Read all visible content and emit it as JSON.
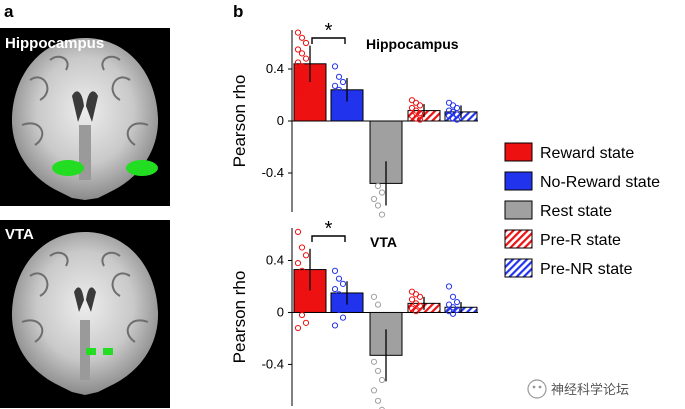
{
  "panels": {
    "a": "a",
    "b": "b"
  },
  "brain_images": [
    {
      "label": "Hippocampus"
    },
    {
      "label": "VTA"
    }
  ],
  "colors": {
    "reward": "#ee1111",
    "noreward": "#2233ee",
    "rest": "#a0a0a0",
    "roi": "#22dd22"
  },
  "legend": [
    {
      "label": "Reward state",
      "style": "solid",
      "color": "#ee1111"
    },
    {
      "label": "No-Reward state",
      "style": "solid",
      "color": "#2233ee"
    },
    {
      "label": "Rest state",
      "style": "solid",
      "color": "#a0a0a0"
    },
    {
      "label": "Pre-R state",
      "style": "hatch",
      "color": "#ee1111"
    },
    {
      "label": "Pre-NR state",
      "style": "hatch",
      "color": "#2233ee"
    }
  ],
  "chart_data": [
    {
      "type": "bar",
      "title": "Hippocampus",
      "ylabel": "Pearson rho",
      "xlabel": "",
      "ylim": [
        -0.7,
        0.7
      ],
      "yticks": [
        0.4,
        0,
        -0.4
      ],
      "ytick_labels": [
        "0.4",
        "0",
        "-0.4"
      ],
      "categories": [
        "Reward state",
        "No-Reward state",
        "Rest state",
        "Pre-R state",
        "Pre-NR state"
      ],
      "values": [
        0.44,
        0.24,
        -0.48,
        0.08,
        0.07
      ],
      "errors": [
        0.14,
        0.09,
        0.17,
        0.05,
        0.05
      ],
      "significance": {
        "between": [
          0,
          1
        ],
        "label": "*"
      },
      "points": [
        [
          0.68,
          0.64,
          0.6,
          0.55,
          0.52,
          0.48,
          0.45,
          0.42,
          0.38,
          0.35,
          0.32,
          0.28,
          0.25,
          0.22
        ],
        [
          0.42,
          0.34,
          0.3,
          0.27,
          0.24,
          0.21,
          0.19,
          0.17,
          0.14,
          0.12,
          0.1
        ],
        [
          -0.12,
          -0.2,
          -0.28,
          -0.38,
          -0.5,
          -0.55,
          -0.6,
          -0.65,
          -0.72
        ],
        [
          0.16,
          0.14,
          0.12,
          0.1,
          0.08,
          0.06,
          0.04,
          0.02,
          0.01
        ],
        [
          0.14,
          0.12,
          0.1,
          0.08,
          0.07,
          0.05,
          0.04,
          0.02,
          0.01
        ]
      ]
    },
    {
      "type": "bar",
      "title": "VTA",
      "ylabel": "Pearson rho",
      "xlabel": "",
      "ylim": [
        -0.72,
        0.65
      ],
      "yticks": [
        0.4,
        0,
        -0.4
      ],
      "ytick_labels": [
        "0.4",
        "0",
        "-0.4"
      ],
      "categories": [
        "Reward state",
        "No-Reward state",
        "Rest state",
        "Pre-R state",
        "Pre-NR state"
      ],
      "values": [
        0.33,
        0.15,
        -0.33,
        0.07,
        0.04
      ],
      "errors": [
        0.16,
        0.09,
        0.2,
        0.05,
        0.04
      ],
      "significance": {
        "between": [
          0,
          1
        ],
        "label": "*"
      },
      "points": [
        [
          0.62,
          0.5,
          0.44,
          0.38,
          0.32,
          0.27,
          0.22,
          0.18,
          0.12,
          0.05,
          -0.02,
          -0.08,
          -0.12
        ],
        [
          0.32,
          0.26,
          0.22,
          0.18,
          0.14,
          0.1,
          0.06,
          0.02,
          -0.04,
          -0.1
        ],
        [
          0.12,
          0.06,
          -0.05,
          -0.12,
          -0.22,
          -0.3,
          -0.38,
          -0.45,
          -0.52,
          -0.6,
          -0.68,
          -0.75
        ],
        [
          0.16,
          0.14,
          0.12,
          0.1,
          0.07,
          0.05,
          0.03,
          0.01
        ],
        [
          0.2,
          0.12,
          0.08,
          0.06,
          0.04,
          0.02,
          0.01,
          -0.01
        ]
      ]
    }
  ],
  "watermark": {
    "text": "神经科学论坛"
  }
}
